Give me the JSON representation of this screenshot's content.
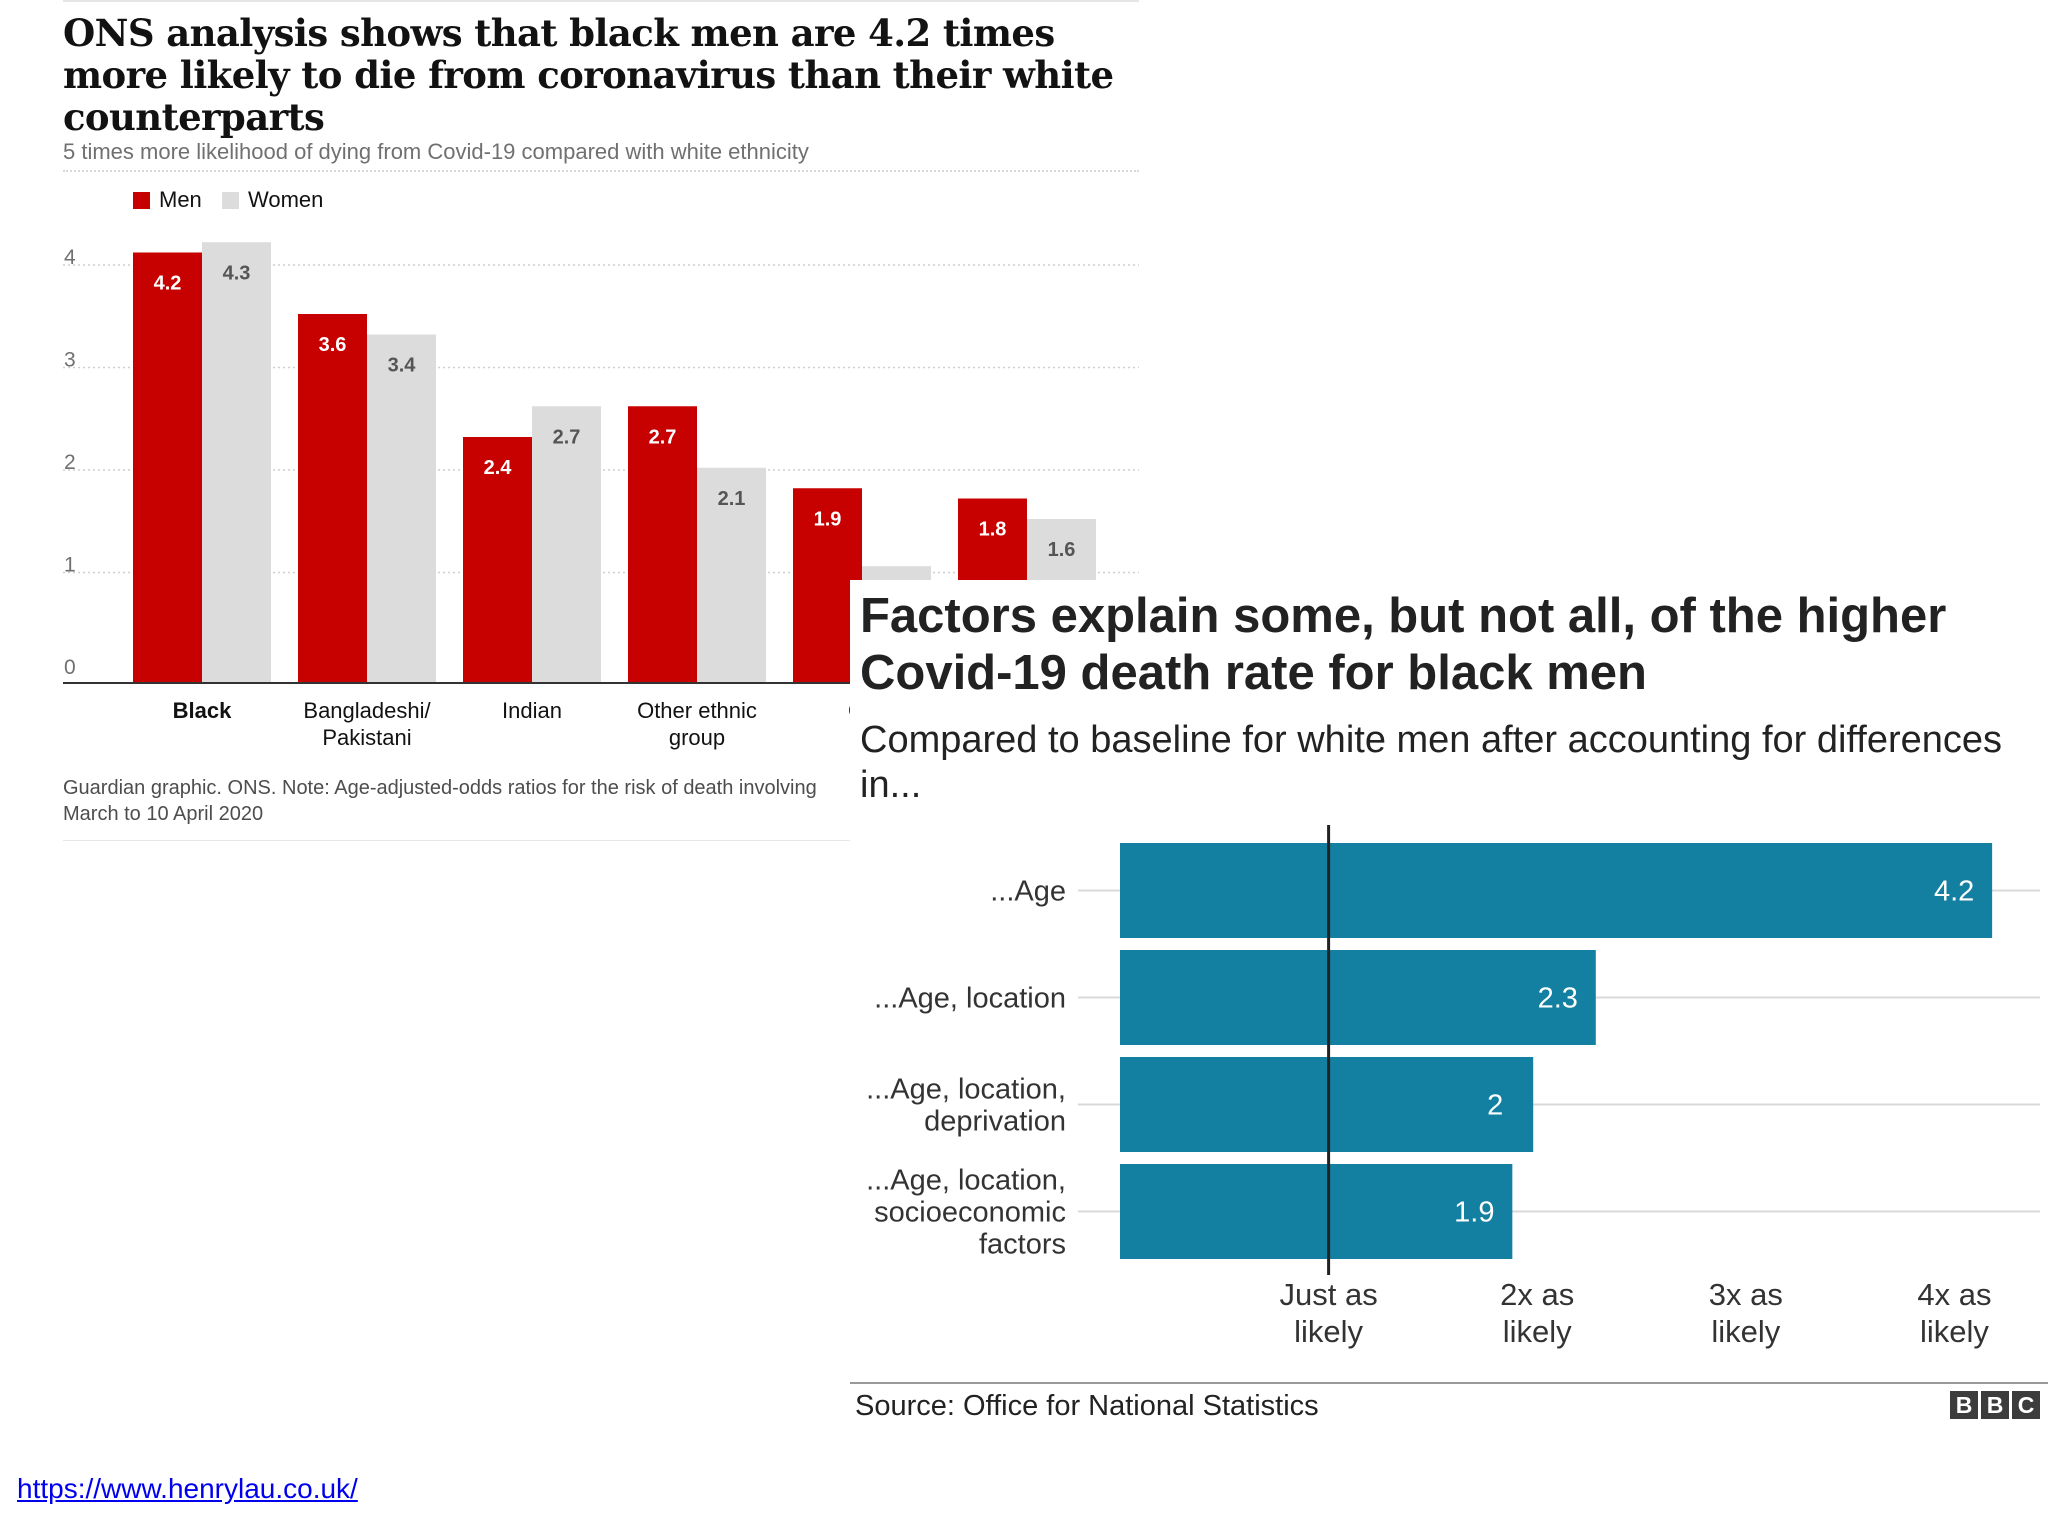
{
  "guardian": {
    "title": "ONS analysis shows that black men are 4.2 times more likely to die from coronavirus than their white counterparts",
    "subtitle": "5 times more likelihood of dying from Covid-19 compared with white ethnicity",
    "source": "Guardian graphic. ONS. Note: Age-adjusted-odds ratios for the risk of death involving",
    "source_line2": "March to 10 April 2020",
    "colors": {
      "men": "#c70000",
      "women": "#dcdcdc"
    }
  },
  "bbc": {
    "title": "Factors explain some, but not all, of the higher Covid-19 death rate for black men",
    "subtitle": "Compared to baseline for white men after accounting for differences in...",
    "source": "Source: Office for National Statistics",
    "logo_letters": [
      "B",
      "B",
      "C"
    ],
    "bar_color": "#1380a1"
  },
  "url": "https://www.henrylau.co.uk/",
  "chart_data": [
    {
      "type": "bar",
      "title": "ONS analysis shows that black men are 4.2 times more likely to die from coronavirus than their white counterparts",
      "subtitle": "5 times more likelihood of dying from Covid-19 compared with white ethnicity",
      "categories": [
        [
          "Black"
        ],
        [
          "Bangladeshi/",
          "Pakistani"
        ],
        [
          "Indian"
        ],
        [
          "Other ethnic",
          "group"
        ],
        [
          "Ch"
        ],
        [
          ""
        ]
      ],
      "series": [
        {
          "name": "Men",
          "values": [
            4.2,
            3.6,
            2.4,
            2.7,
            1.9,
            1.8
          ],
          "labels": [
            "4.2",
            "3.6",
            "2.4",
            "2.7",
            "1.9",
            "1.8"
          ]
        },
        {
          "name": "Women",
          "values": [
            4.3,
            3.4,
            2.7,
            2.1,
            1.14,
            1.6
          ],
          "labels": [
            "4.3",
            "3.4",
            "2.7",
            "2.1",
            "",
            "1.6"
          ]
        }
      ],
      "yticks": [
        "0",
        "1",
        "2",
        "3",
        "4"
      ],
      "ylim": [
        0,
        4.3
      ],
      "legend": "top-left",
      "grid": true
    },
    {
      "type": "bar",
      "orientation": "horizontal",
      "title": "Factors explain some, but not all, of the higher Covid-19 death rate for black men",
      "subtitle": "Compared to baseline for white men after accounting for differences in...",
      "categories": [
        [
          "...Age"
        ],
        [
          "...Age, location"
        ],
        [
          "...Age, location,",
          "deprivation"
        ],
        [
          "...Age, location,",
          "socioeconomic",
          "factors"
        ]
      ],
      "values": [
        4.2,
        2.3,
        2,
        1.9
      ],
      "labels": [
        "4.2",
        "2.3",
        "2",
        "1.9"
      ],
      "xticks": [
        [
          "Just as",
          "likely"
        ],
        [
          "2x as",
          "likely"
        ],
        [
          "3x as",
          "likely"
        ],
        [
          "4x as",
          "likely"
        ]
      ],
      "baseline": 1,
      "xlim": [
        0,
        4.2
      ]
    }
  ]
}
